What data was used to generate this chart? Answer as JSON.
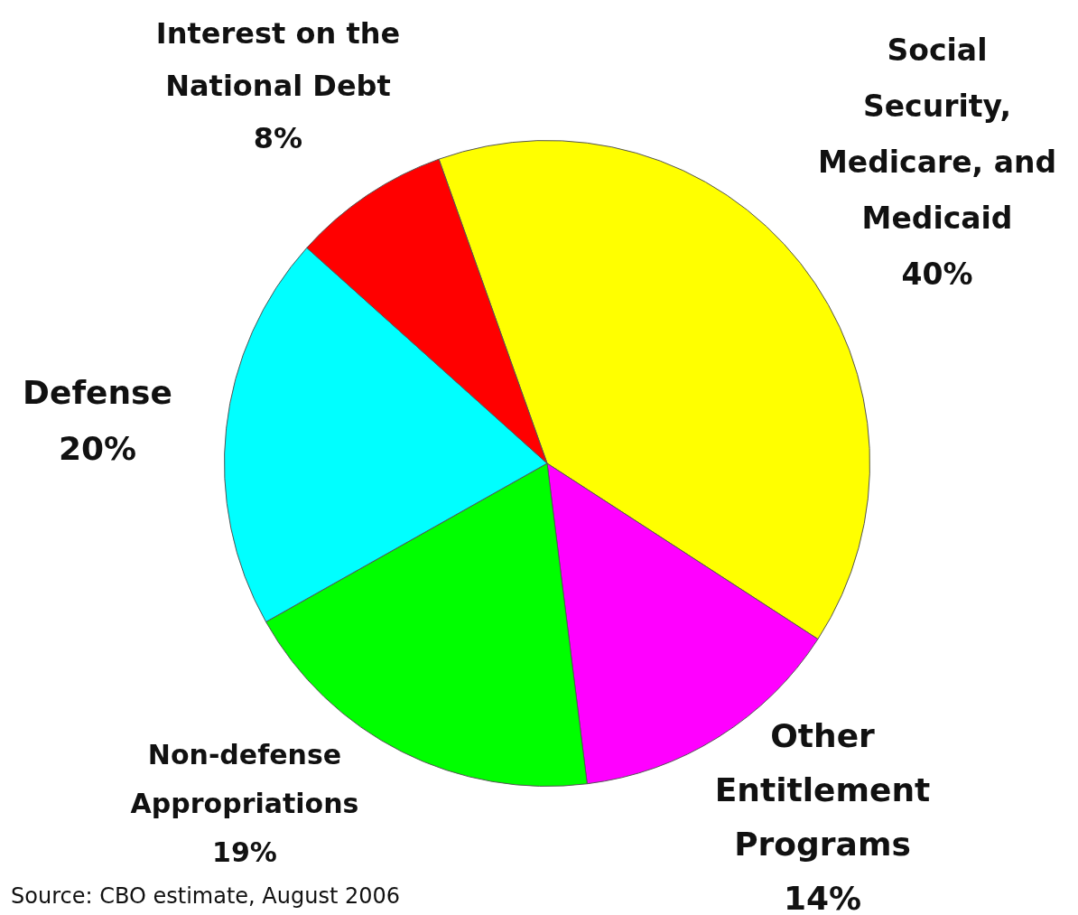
{
  "chart_data": {
    "type": "pie",
    "categories": [
      "Social Security, Medicare, and Medicaid",
      "Other Entitlement Programs",
      "Non-defense Appropriations",
      "Defense",
      "Interest on the National Debt"
    ],
    "values": [
      40,
      14,
      19,
      20,
      8
    ],
    "value_labels": [
      "40%",
      "14%",
      "19%",
      "20%",
      "8%"
    ],
    "colors": [
      "#ffff00",
      "#ff00ff",
      "#00ff00",
      "#00ffff",
      "#ff0000"
    ],
    "annotations": [
      "Source: CBO estimate, August 2006"
    ],
    "legend": false
  }
}
